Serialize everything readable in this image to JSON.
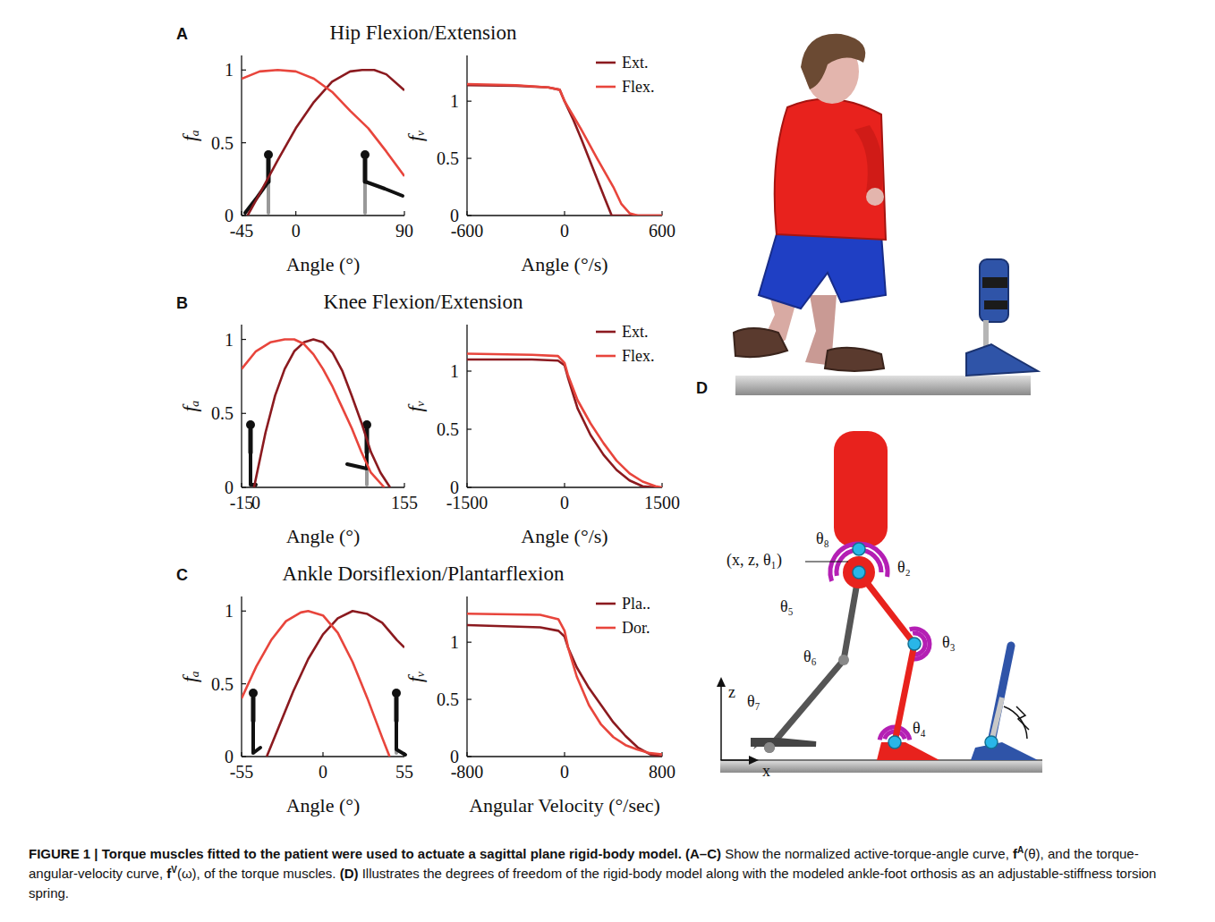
{
  "panels": [
    {
      "letter": "A",
      "title": "Hip Flexion/Extension"
    },
    {
      "letter": "B",
      "title": "Knee Flexion/Extension"
    },
    {
      "letter": "C",
      "title": "Ankle Dorsiflexion/Plantarflexion"
    }
  ],
  "chart_data": [
    {
      "type": "line",
      "xlabel": "Angle (°)",
      "ylabel": "fₐ",
      "xlim": [
        -45,
        90
      ],
      "ylim": [
        0,
        1.1
      ],
      "xticks": [
        -45,
        0,
        90
      ],
      "yticks": [
        0,
        0.5,
        1
      ],
      "series": [
        {
          "color": "#8b1a1f",
          "x": [
            -40,
            -30,
            -15,
            0,
            15,
            30,
            45,
            55,
            65,
            75,
            90
          ],
          "values": [
            0,
            0.15,
            0.38,
            0.6,
            0.78,
            0.92,
            0.99,
            1.0,
            1.0,
            0.97,
            0.86
          ]
        },
        {
          "color": "#e8453c",
          "x": [
            -45,
            -30,
            -15,
            0,
            15,
            30,
            45,
            60,
            75,
            90
          ],
          "values": [
            0.94,
            0.99,
            1.0,
            0.99,
            0.94,
            0.85,
            0.72,
            0.6,
            0.44,
            0.27
          ]
        }
      ]
    },
    {
      "type": "line",
      "xlabel": "Angle (°/s)",
      "ylabel": "fᵥ",
      "xlim": [
        -600,
        600
      ],
      "ylim": [
        0,
        1.4
      ],
      "xticks": [
        -600,
        0,
        600
      ],
      "yticks": [
        0,
        0.5,
        1
      ],
      "legend": "upper right",
      "series": [
        {
          "name": "Ext.",
          "color": "#8b1a1f",
          "x": [
            -600,
            -300,
            -100,
            -30,
            0,
            50,
            100,
            150,
            200,
            250,
            290,
            600
          ],
          "values": [
            1.14,
            1.135,
            1.12,
            1.1,
            1.0,
            0.85,
            0.68,
            0.5,
            0.32,
            0.14,
            0,
            0
          ]
        },
        {
          "name": "Flex.",
          "color": "#e8453c",
          "x": [
            -600,
            -300,
            -100,
            -30,
            0,
            50,
            100,
            200,
            300,
            350,
            400,
            450,
            600
          ],
          "values": [
            1.15,
            1.14,
            1.12,
            1.1,
            1.0,
            0.88,
            0.76,
            0.5,
            0.25,
            0.1,
            0.02,
            0,
            0
          ]
        }
      ]
    },
    {
      "type": "line",
      "xlabel": "Angle (°)",
      "ylabel": "fₐ",
      "xlim": [
        -15,
        155
      ],
      "ylim": [
        0,
        1.1
      ],
      "xticks": [
        -15,
        0,
        155
      ],
      "yticks": [
        0,
        0.5,
        1
      ],
      "series": [
        {
          "color": "#8b1a1f",
          "x": [
            -2,
            10,
            20,
            30,
            40,
            50,
            60,
            70,
            80,
            90,
            100,
            110,
            120,
            130,
            140
          ],
          "values": [
            0,
            0.37,
            0.62,
            0.8,
            0.92,
            0.98,
            1.0,
            0.98,
            0.91,
            0.79,
            0.62,
            0.44,
            0.24,
            0.1,
            0
          ]
        },
        {
          "color": "#e8453c",
          "x": [
            -15,
            0,
            15,
            30,
            40,
            50,
            60,
            70,
            80,
            90,
            100,
            110,
            120,
            134
          ],
          "values": [
            0.8,
            0.92,
            0.98,
            1.0,
            1.0,
            0.97,
            0.9,
            0.8,
            0.68,
            0.54,
            0.4,
            0.24,
            0.1,
            0
          ]
        }
      ]
    },
    {
      "type": "line",
      "xlabel": "Angle (°/s)",
      "ylabel": "fᵥ",
      "xlim": [
        -1500,
        1500
      ],
      "ylim": [
        0,
        1.4
      ],
      "xticks": [
        -1500,
        0,
        1500
      ],
      "yticks": [
        0,
        0.5,
        1
      ],
      "legend": "upper right",
      "series": [
        {
          "name": "Ext.",
          "color": "#8b1a1f",
          "x": [
            -1500,
            -500,
            -100,
            0,
            50,
            200,
            400,
            600,
            800,
            1000,
            1200,
            1400
          ],
          "values": [
            1.1,
            1.1,
            1.09,
            1.05,
            0.95,
            0.68,
            0.45,
            0.28,
            0.15,
            0.06,
            0.01,
            0
          ]
        },
        {
          "name": "Flex.",
          "color": "#e8453c",
          "x": [
            -1500,
            -500,
            -100,
            0,
            50,
            200,
            400,
            600,
            800,
            1000,
            1200,
            1400,
            1500
          ],
          "values": [
            1.15,
            1.14,
            1.13,
            1.07,
            0.97,
            0.75,
            0.55,
            0.38,
            0.23,
            0.12,
            0.05,
            0.01,
            0
          ]
        }
      ]
    },
    {
      "type": "line",
      "xlabel": "Angle (°)",
      "ylabel": "fₐ",
      "xlim": [
        -55,
        55
      ],
      "ylim": [
        0,
        1.1
      ],
      "xticks": [
        -55,
        0,
        55
      ],
      "yticks": [
        0,
        0.5,
        1
      ],
      "series": [
        {
          "color": "#8b1a1f",
          "x": [
            -38,
            -30,
            -20,
            -10,
            0,
            10,
            20,
            30,
            40,
            50,
            55
          ],
          "values": [
            0,
            0.2,
            0.45,
            0.67,
            0.84,
            0.95,
            1.0,
            0.98,
            0.92,
            0.8,
            0.75
          ]
        },
        {
          "color": "#e8453c",
          "x": [
            -55,
            -45,
            -35,
            -25,
            -15,
            -10,
            0,
            10,
            20,
            30,
            40,
            45
          ],
          "values": [
            0.4,
            0.62,
            0.8,
            0.93,
            0.99,
            1.0,
            0.97,
            0.85,
            0.65,
            0.4,
            0.13,
            0
          ]
        }
      ]
    },
    {
      "type": "line",
      "xlabel": "Angular Velocity (°/sec)",
      "ylabel": "fᵥ",
      "xlim": [
        -800,
        800
      ],
      "ylim": [
        0,
        1.4
      ],
      "xticks": [
        -800,
        0,
        800
      ],
      "yticks": [
        0,
        0.5,
        1
      ],
      "legend": "upper right",
      "series": [
        {
          "name": "Pla..",
          "color": "#8b1a1f",
          "x": [
            -800,
            -200,
            -50,
            0,
            30,
            100,
            200,
            300,
            400,
            500,
            600,
            700,
            800
          ],
          "values": [
            1.15,
            1.13,
            1.1,
            1.05,
            0.95,
            0.78,
            0.6,
            0.45,
            0.3,
            0.18,
            0.08,
            0.02,
            0
          ]
        },
        {
          "name": "Dor.",
          "color": "#e8453c",
          "x": [
            -800,
            -200,
            -50,
            0,
            30,
            100,
            200,
            300,
            400,
            500,
            600,
            700,
            800
          ],
          "values": [
            1.25,
            1.24,
            1.2,
            1.1,
            0.95,
            0.7,
            0.45,
            0.28,
            0.17,
            0.1,
            0.06,
            0.03,
            0.02
          ]
        }
      ]
    }
  ],
  "diagram": {
    "letter": "D",
    "labels": [
      "θ₈",
      "(x, z, θ₁)",
      "θ₂",
      "θ₅",
      "θ₃",
      "θ₆",
      "θ₇",
      "θ₄",
      "z",
      "x"
    ]
  },
  "caption": [
    {
      "text": "FIGURE 1 | Torque muscles fitted to the patient were used to actuate a sagittal plane rigid-body model. (A–C)",
      "bold": true
    },
    {
      "text": " Show the normalized active-torque-angle curve, "
    },
    {
      "text": "f",
      "bold": true
    },
    {
      "text": "A",
      "sup": true
    },
    {
      "text": "(θ), and the torque-angular-velocity curve, "
    },
    {
      "text": "f",
      "bold": true
    },
    {
      "text": "V",
      "sup": true
    },
    {
      "text": "(ω), of the torque muscles. "
    },
    {
      "text": "(D)",
      "bold": true
    },
    {
      "text": " Illustrates the degrees of freedom of the rigid-body model along with the modeled ankle-foot orthosis as an adjustable-stiffness torsion spring."
    }
  ]
}
